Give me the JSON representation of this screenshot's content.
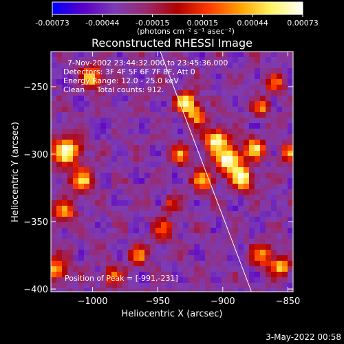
{
  "colorbar": {
    "min": -0.00073,
    "max": 0.00073,
    "ticks": [
      "-0.00073",
      "-0.00044",
      "-0.00015",
      "0.00015",
      "0.00044",
      "0.00073"
    ],
    "unit_label": "(photons cm⁻² s⁻¹ asec⁻²)",
    "colors": [
      "#0000ff",
      "#5a00c8",
      "#7d3cb4",
      "#9a2a6e",
      "#b20000",
      "#ff3a00",
      "#ffa000",
      "#fff560",
      "#ffffff"
    ]
  },
  "chart_data": {
    "type": "heatmap",
    "title": "Reconstructed RHESSI Image",
    "xlabel": "Heliocentric X (arcsec)",
    "ylabel": "Heliocentric Y (arcsec)",
    "xlim": [
      -1032,
      -846
    ],
    "ylim": [
      -402,
      -224
    ],
    "xticks": [
      -1000,
      -950,
      -900,
      -850
    ],
    "xtick_labels": [
      "−1000",
      "−950",
      "−900",
      "−850"
    ],
    "yticks": [
      -250,
      -300,
      -350,
      -400
    ],
    "ytick_labels": [
      "−250",
      "−300",
      "−350",
      "−400"
    ],
    "limb_line": [
      [
        -948,
        -224
      ],
      [
        -878,
        -402
      ]
    ],
    "peak": [
      -991,
      -231
    ],
    "blobs": [
      {
        "x": -928,
        "y": -262,
        "r": 8,
        "v": 0.85
      },
      {
        "x": -920,
        "y": -272,
        "r": 7,
        "v": 0.6
      },
      {
        "x": -905,
        "y": -290,
        "r": 9,
        "v": 0.9
      },
      {
        "x": -895,
        "y": -305,
        "r": 9,
        "v": 1.0
      },
      {
        "x": -885,
        "y": -318,
        "r": 8,
        "v": 0.9
      },
      {
        "x": -876,
        "y": -296,
        "r": 8,
        "v": 0.75
      },
      {
        "x": -870,
        "y": -265,
        "r": 6,
        "v": 0.55
      },
      {
        "x": -915,
        "y": -320,
        "r": 8,
        "v": 0.65
      },
      {
        "x": -932,
        "y": -300,
        "r": 7,
        "v": 0.55
      },
      {
        "x": -1020,
        "y": -298,
        "r": 11,
        "v": 0.85
      },
      {
        "x": -1008,
        "y": -320,
        "r": 9,
        "v": 0.7
      },
      {
        "x": -1022,
        "y": -343,
        "r": 8,
        "v": 0.6
      },
      {
        "x": -1000,
        "y": -243,
        "r": 8,
        "v": 0.75
      },
      {
        "x": -1028,
        "y": -385,
        "r": 9,
        "v": 0.65
      },
      {
        "x": -985,
        "y": -390,
        "r": 7,
        "v": 0.5
      },
      {
        "x": -965,
        "y": -375,
        "r": 7,
        "v": 0.55
      },
      {
        "x": -945,
        "y": -356,
        "r": 8,
        "v": 0.45
      },
      {
        "x": -870,
        "y": -375,
        "r": 8,
        "v": 0.6
      },
      {
        "x": -855,
        "y": -383,
        "r": 7,
        "v": 0.7
      },
      {
        "x": -850,
        "y": -300,
        "r": 7,
        "v": 0.55
      },
      {
        "x": -860,
        "y": -248,
        "r": 7,
        "v": 0.5
      },
      {
        "x": -940,
        "y": -338,
        "r": 6,
        "v": 0.4
      }
    ]
  },
  "info": {
    "line1": "7-Nov-2002 23:44:32.000 to 23:45:36.000",
    "line2": "Detectors: 3F 4F 5F 6F 7F 8F, Att 0",
    "line3": "Energy Range: 12.0 - 25.0 keV",
    "line4": "Clean     Total counts: 912.",
    "peak_text": "Position of Peak = [-991,-231]"
  },
  "timestamp": "3-May-2022 00:58"
}
